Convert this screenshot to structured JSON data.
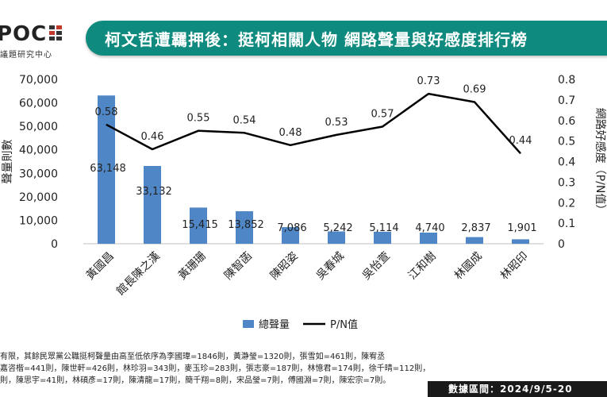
{
  "logo": {
    "text": "POC",
    "subtitle": "議題研究中心"
  },
  "header": {
    "title": "柯文哲遭羈押後：挺柯相關人物  網路聲量與好感度排行榜"
  },
  "chart_data": {
    "type": "bar+line",
    "categories": [
      "黃國昌",
      "館長陳之漢",
      "黃珊珊",
      "陳智菡",
      "陳昭姿",
      "吳春城",
      "吳怡萱",
      "江和樹",
      "林國成",
      "林昭印"
    ],
    "series": [
      {
        "name": "總聲量",
        "type": "bar",
        "axis": "left",
        "color": "#4f86c6",
        "values": [
          63148,
          33132,
          15415,
          13852,
          7086,
          5242,
          5114,
          4740,
          2837,
          1901
        ],
        "labels": [
          "63,148",
          "33,132",
          "15,415",
          "13,852",
          "7,086",
          "5,242",
          "5,114",
          "4,740",
          "2,837",
          "1,901"
        ]
      },
      {
        "name": "P/N值",
        "type": "line",
        "axis": "right",
        "color": "#000000",
        "values": [
          0.58,
          0.46,
          0.55,
          0.54,
          0.48,
          0.53,
          0.57,
          0.73,
          0.69,
          0.44
        ],
        "labels": [
          "0.58",
          "0.46",
          "0.55",
          "0.54",
          "0.48",
          "0.53",
          "0.57",
          "0.73",
          "0.69",
          "0.44"
        ]
      }
    ],
    "ylabel": "聲量則數",
    "y2label": "網路好感度（P/N值）",
    "ylim": [
      0,
      70000
    ],
    "y2lim": [
      0,
      0.8
    ],
    "yticks": [
      "0",
      "10,000",
      "20,000",
      "30,000",
      "40,000",
      "50,000",
      "60,000",
      "70,000"
    ],
    "y2ticks": [
      "0",
      "0.1",
      "0.2",
      "0.3",
      "0.4",
      "0.5",
      "0.6",
      "0.7",
      "0.8"
    ],
    "legend_position": "bottom",
    "grid": false
  },
  "footer": {
    "note_lines": [
      "有限，其餘民眾黨公職挺柯聲量由高至低依序為李國瑋=1846則，黃瀞瑩=1320則，張雪如=461則，陳宥丞",
      "嘉咨楷=441則，陳世軒=426則，林珍羽=343則，麥玉珍=283則，張志豪=187則，林憶君=174則，徐千晴=112則，",
      "則，陳思宇=41則，林碩彥=17則，陳清龍=17則，簡千翔=8則，宋品瑩=7則，傅國淵=7則，陳宏宗=7則。"
    ],
    "data_range": "數據區間：2024/9/5-20"
  },
  "colors": {
    "accent": "#0f8a7e",
    "bar": "#4f86c6",
    "line": "#000000"
  }
}
